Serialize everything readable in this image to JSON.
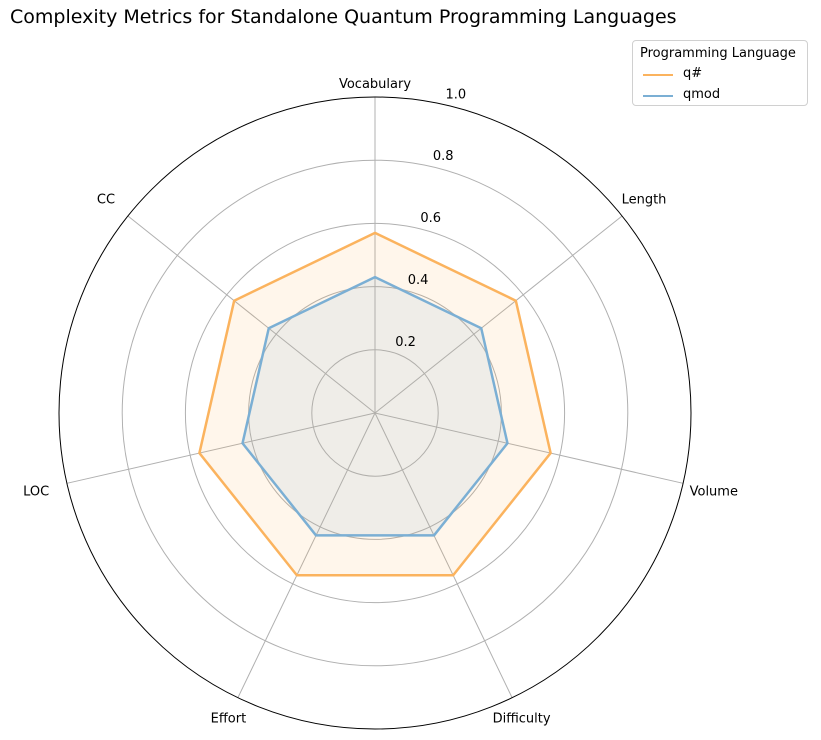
{
  "chart_data": {
    "type": "radar",
    "title": "Complexity Metrics for Standalone Quantum Programming Languages",
    "axes": [
      "Vocabulary",
      "Length",
      "Volume",
      "Difficulty",
      "Effort",
      "LOC",
      "CC"
    ],
    "rlim": [
      0,
      1.0
    ],
    "radial_ticks": [
      "0.2",
      "0.4",
      "0.6",
      "0.8",
      "1.0"
    ],
    "radial_tick_values": [
      0.2,
      0.4,
      0.6,
      0.8,
      1.0
    ],
    "series": [
      {
        "name": "q#",
        "values": [
          0.57,
          0.57,
          0.57,
          0.57,
          0.57,
          0.57,
          0.57
        ],
        "color": "#fbb35e"
      },
      {
        "name": "qmod",
        "values": [
          0.43,
          0.43,
          0.43,
          0.43,
          0.43,
          0.43,
          0.43
        ],
        "color": "#7bafd4"
      }
    ],
    "legend": {
      "title": "Programming Language",
      "placement": "top-right"
    },
    "grid": true
  }
}
